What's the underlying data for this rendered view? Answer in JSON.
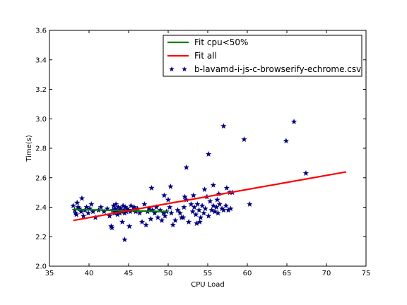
{
  "chart_data": {
    "type": "scatter",
    "xlabel": "CPU Load",
    "ylabel": "Time(s)",
    "xlim": [
      35,
      75
    ],
    "ylim": [
      2.0,
      3.6
    ],
    "xticks": [
      "35",
      "40",
      "45",
      "50",
      "55",
      "60",
      "65",
      "70",
      "75"
    ],
    "yticks": [
      "2.0",
      "2.2",
      "2.4",
      "2.6",
      "2.8",
      "3.0",
      "3.2",
      "3.4",
      "3.6"
    ],
    "grid": false,
    "legend_position": "top-right",
    "series": [
      {
        "name": "Fit cpu<50%",
        "kind": "line",
        "color": "#007f00",
        "x": [
          38,
          50
        ],
        "y": [
          2.385,
          2.37
        ]
      },
      {
        "name": "Fit all",
        "kind": "line",
        "color": "#ff0000",
        "x": [
          38,
          72.5
        ],
        "y": [
          2.31,
          2.64
        ]
      },
      {
        "name": "b-lavamd-i-js-c-browserify-echrome.csv",
        "kind": "scatter",
        "marker": "star",
        "color": "#00007f",
        "points": [
          [
            38.0,
            2.41
          ],
          [
            38.2,
            2.38
          ],
          [
            38.3,
            2.36
          ],
          [
            38.5,
            2.43
          ],
          [
            38.6,
            2.4
          ],
          [
            38.8,
            2.39
          ],
          [
            39.0,
            2.37
          ],
          [
            39.1,
            2.46
          ],
          [
            39.3,
            2.34
          ],
          [
            39.5,
            2.38
          ],
          [
            39.7,
            2.4
          ],
          [
            39.9,
            2.36
          ],
          [
            40.1,
            2.39
          ],
          [
            40.3,
            2.42
          ],
          [
            40.5,
            2.37
          ],
          [
            40.8,
            2.33
          ],
          [
            41.2,
            2.38
          ],
          [
            41.5,
            2.4
          ],
          [
            41.9,
            2.37
          ],
          [
            42.3,
            2.39
          ],
          [
            42.6,
            2.34
          ],
          [
            42.8,
            2.27
          ],
          [
            42.9,
            2.26
          ],
          [
            43.0,
            2.38
          ],
          [
            43.1,
            2.41
          ],
          [
            43.2,
            2.36
          ],
          [
            43.3,
            2.39
          ],
          [
            43.4,
            2.42
          ],
          [
            43.5,
            2.37
          ],
          [
            43.6,
            2.35
          ],
          [
            43.7,
            2.4
          ],
          [
            43.8,
            2.38
          ],
          [
            43.9,
            2.36
          ],
          [
            44.0,
            2.39
          ],
          [
            44.1,
            2.37
          ],
          [
            44.2,
            2.3
          ],
          [
            44.3,
            2.41
          ],
          [
            44.4,
            2.38
          ],
          [
            44.5,
            2.36
          ],
          [
            44.6,
            2.4
          ],
          [
            44.7,
            2.37
          ],
          [
            44.8,
            2.39
          ],
          [
            45.0,
            2.38
          ],
          [
            45.1,
            2.27
          ],
          [
            45.2,
            2.37
          ],
          [
            45.3,
            2.41
          ],
          [
            45.5,
            2.38
          ],
          [
            45.7,
            2.4
          ],
          [
            45.9,
            2.37
          ],
          [
            46.1,
            2.39
          ],
          [
            46.4,
            2.36
          ],
          [
            46.7,
            2.3
          ],
          [
            47.0,
            2.42
          ],
          [
            47.2,
            2.28
          ],
          [
            47.4,
            2.37
          ],
          [
            47.6,
            2.39
          ],
          [
            47.8,
            2.32
          ],
          [
            48.0,
            2.38
          ],
          [
            48.3,
            2.36
          ],
          [
            48.5,
            2.4
          ],
          [
            48.7,
            2.33
          ],
          [
            49.0,
            2.38
          ],
          [
            49.2,
            2.31
          ],
          [
            49.4,
            2.36
          ],
          [
            49.6,
            2.34
          ],
          [
            49.8,
            2.37
          ],
          [
            50.0,
            2.45
          ],
          [
            50.2,
            2.4
          ],
          [
            50.4,
            2.36
          ],
          [
            50.6,
            2.28
          ],
          [
            50.9,
            2.31
          ],
          [
            51.2,
            2.38
          ],
          [
            51.5,
            2.36
          ],
          [
            51.7,
            2.33
          ],
          [
            52.0,
            2.4
          ],
          [
            52.3,
            2.45
          ],
          [
            52.6,
            2.3
          ],
          [
            52.9,
            2.42
          ],
          [
            53.1,
            2.37
          ],
          [
            53.3,
            2.4
          ],
          [
            53.5,
            2.35
          ],
          [
            53.7,
            2.42
          ],
          [
            53.9,
            2.38
          ],
          [
            54.1,
            2.33
          ],
          [
            54.3,
            2.41
          ],
          [
            54.5,
            2.36
          ],
          [
            54.7,
            2.39
          ],
          [
            54.9,
            2.47
          ],
          [
            55.1,
            2.34
          ],
          [
            55.3,
            2.44
          ],
          [
            55.5,
            2.38
          ],
          [
            55.7,
            2.41
          ],
          [
            55.9,
            2.37
          ],
          [
            56.1,
            2.4
          ],
          [
            56.3,
            2.36
          ],
          [
            56.5,
            2.42
          ],
          [
            56.8,
            2.39
          ],
          [
            57.0,
            2.38
          ],
          [
            57.3,
            2.41
          ],
          [
            57.6,
            2.38
          ],
          [
            57.9,
            2.39
          ],
          [
            38.4,
            2.35
          ],
          [
            44.5,
            2.18
          ],
          [
            47.9,
            2.53
          ],
          [
            50.3,
            2.54
          ],
          [
            49.5,
            2.48
          ],
          [
            52.3,
            2.67
          ],
          [
            55.1,
            2.76
          ],
          [
            57.0,
            2.95
          ],
          [
            59.6,
            2.86
          ],
          [
            64.9,
            2.85
          ],
          [
            65.9,
            2.98
          ],
          [
            67.4,
            2.63
          ],
          [
            60.3,
            2.42
          ],
          [
            55.7,
            2.55
          ],
          [
            56.4,
            2.49
          ],
          [
            57.4,
            2.53
          ],
          [
            57.8,
            2.5
          ],
          [
            53.6,
            2.29
          ],
          [
            51.9,
            2.33
          ],
          [
            54.6,
            2.52
          ],
          [
            52.1,
            2.47
          ],
          [
            56.2,
            2.45
          ],
          [
            58.1,
            2.5
          ],
          [
            53.2,
            2.48
          ],
          [
            54.0,
            2.3
          ]
        ]
      }
    ]
  }
}
